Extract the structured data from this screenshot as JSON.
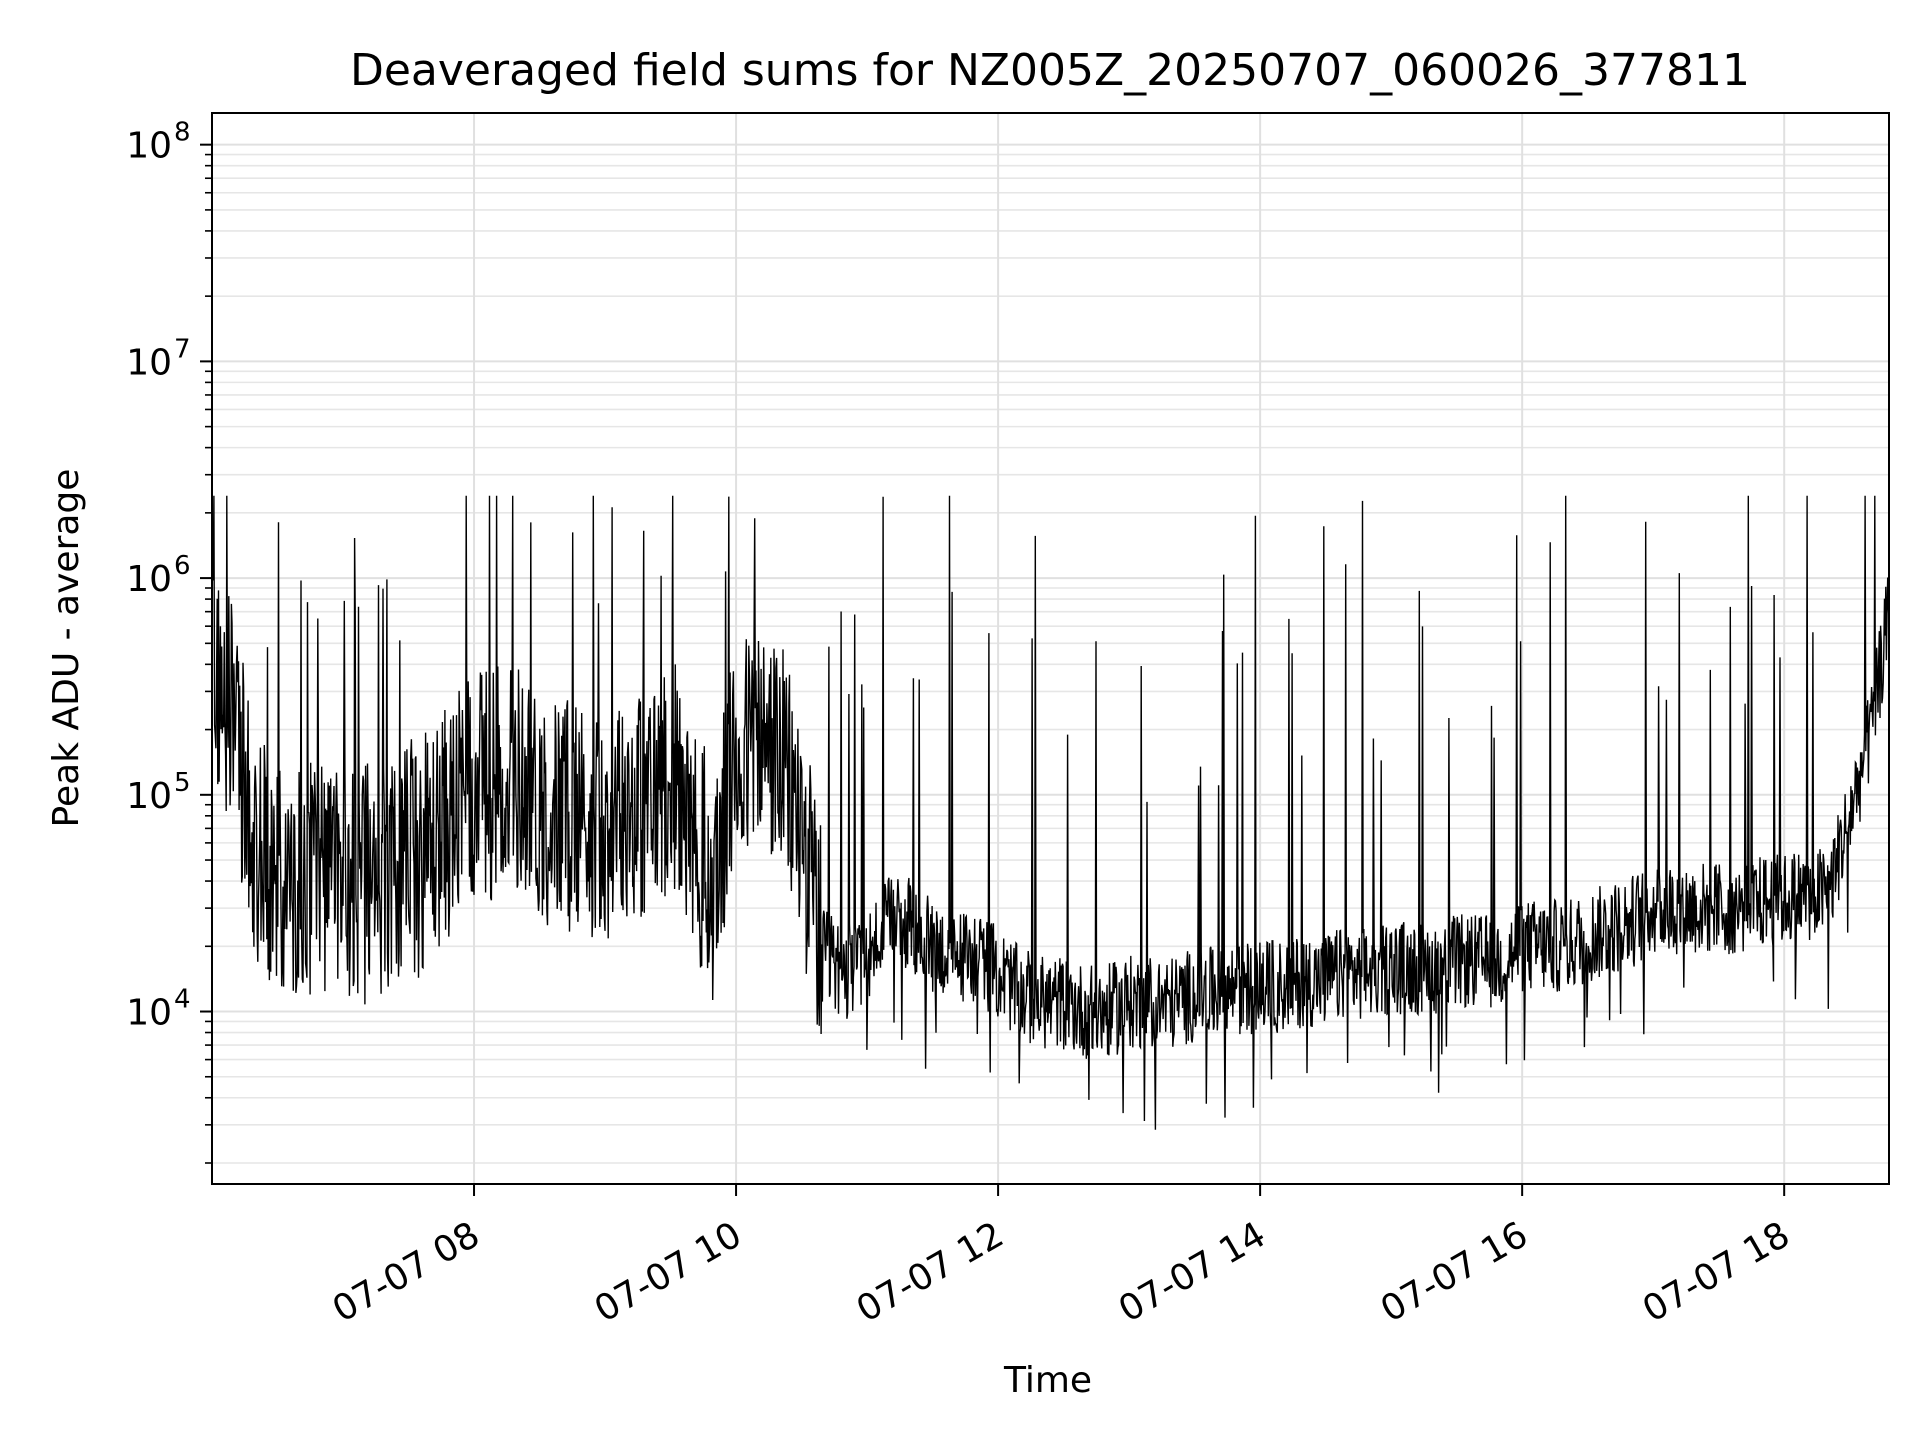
{
  "chart_data": {
    "type": "line",
    "title": "Deaveraged field sums for NZ005Z_20250707_060026_377811",
    "xlabel": "Time",
    "ylabel": "Peak ADU - average",
    "yscale": "log",
    "ylim": [
      1600,
      140000000
    ],
    "xlim": [
      "07-07 06:00",
      "07-07 18:48"
    ],
    "grid": true,
    "legend": "none",
    "line_color": "#000000",
    "x_ticks": [
      {
        "label": "07-07 08",
        "value": "07-07 08:00"
      },
      {
        "label": "07-07 10",
        "value": "07-07 10:00"
      },
      {
        "label": "07-07 12",
        "value": "07-07 12:00"
      },
      {
        "label": "07-07 14",
        "value": "07-07 14:00"
      },
      {
        "label": "07-07 16",
        "value": "07-07 16:00"
      },
      {
        "label": "07-07 18",
        "value": "07-07 18:00"
      }
    ],
    "y_ticks": [
      {
        "base": "10",
        "exp": "4",
        "value": 10000
      },
      {
        "base": "10",
        "exp": "5",
        "value": 100000
      },
      {
        "base": "10",
        "exp": "6",
        "value": 1000000
      },
      {
        "base": "10",
        "exp": "7",
        "value": 10000000
      },
      {
        "base": "10",
        "exp": "8",
        "value": 100000000
      }
    ],
    "series": [
      {
        "x": [
          "07-07 06:00",
          "07-07 06:10",
          "07-07 06:20",
          "07-07 06:30",
          "07-07 06:40",
          "07-07 06:50",
          "07-07 07:00",
          "07-07 07:10",
          "07-07 07:20",
          "07-07 07:30",
          "07-07 07:40",
          "07-07 07:50",
          "07-07 08:00",
          "07-07 08:10",
          "07-07 08:20",
          "07-07 08:30",
          "07-07 08:40",
          "07-07 08:50",
          "07-07 09:00",
          "07-07 09:10",
          "07-07 09:20",
          "07-07 09:30",
          "07-07 09:40",
          "07-07 09:50",
          "07-07 10:00",
          "07-07 10:10",
          "07-07 10:20",
          "07-07 10:30",
          "07-07 10:40",
          "07-07 10:50",
          "07-07 11:00",
          "07-07 11:10",
          "07-07 11:20",
          "07-07 11:30",
          "07-07 11:40",
          "07-07 11:50",
          "07-07 12:00",
          "07-07 12:10",
          "07-07 12:20",
          "07-07 12:30",
          "07-07 12:40",
          "07-07 12:50",
          "07-07 13:00",
          "07-07 13:10",
          "07-07 13:20",
          "07-07 13:30",
          "07-07 13:40",
          "07-07 13:50",
          "07-07 14:00",
          "07-07 14:10",
          "07-07 14:20",
          "07-07 14:30",
          "07-07 14:40",
          "07-07 14:50",
          "07-07 15:00",
          "07-07 15:10",
          "07-07 15:20",
          "07-07 15:30",
          "07-07 15:40",
          "07-07 15:50",
          "07-07 16:00",
          "07-07 16:10",
          "07-07 16:20",
          "07-07 16:30",
          "07-07 16:40",
          "07-07 16:50",
          "07-07 17:00",
          "07-07 17:10",
          "07-07 17:20",
          "07-07 17:30",
          "07-07 17:40",
          "07-07 17:50",
          "07-07 18:00",
          "07-07 18:10",
          "07-07 18:20",
          "07-07 18:30",
          "07-07 18:40",
          "07-07 18:48"
        ],
        "y": [
          500000,
          200000,
          60000,
          40000,
          40000,
          40000,
          40000,
          40000,
          40000,
          50000,
          60000,
          80000,
          100000,
          120000,
          120000,
          90000,
          80000,
          80000,
          70000,
          90000,
          90000,
          150000,
          60000,
          40000,
          150000,
          180000,
          150000,
          70000,
          18000,
          15000,
          18000,
          25000,
          25000,
          20000,
          18000,
          18000,
          15000,
          12000,
          11000,
          11000,
          10000,
          10000,
          11000,
          11000,
          11000,
          12000,
          12000,
          13000,
          13000,
          13000,
          14000,
          14000,
          15000,
          15000,
          16000,
          16000,
          16000,
          17000,
          17000,
          17000,
          20000,
          20000,
          20000,
          22000,
          24000,
          26000,
          30000,
          30000,
          30000,
          30000,
          30000,
          32000,
          33000,
          35000,
          35000,
          80000,
          200000,
          700000
        ]
      }
    ]
  }
}
